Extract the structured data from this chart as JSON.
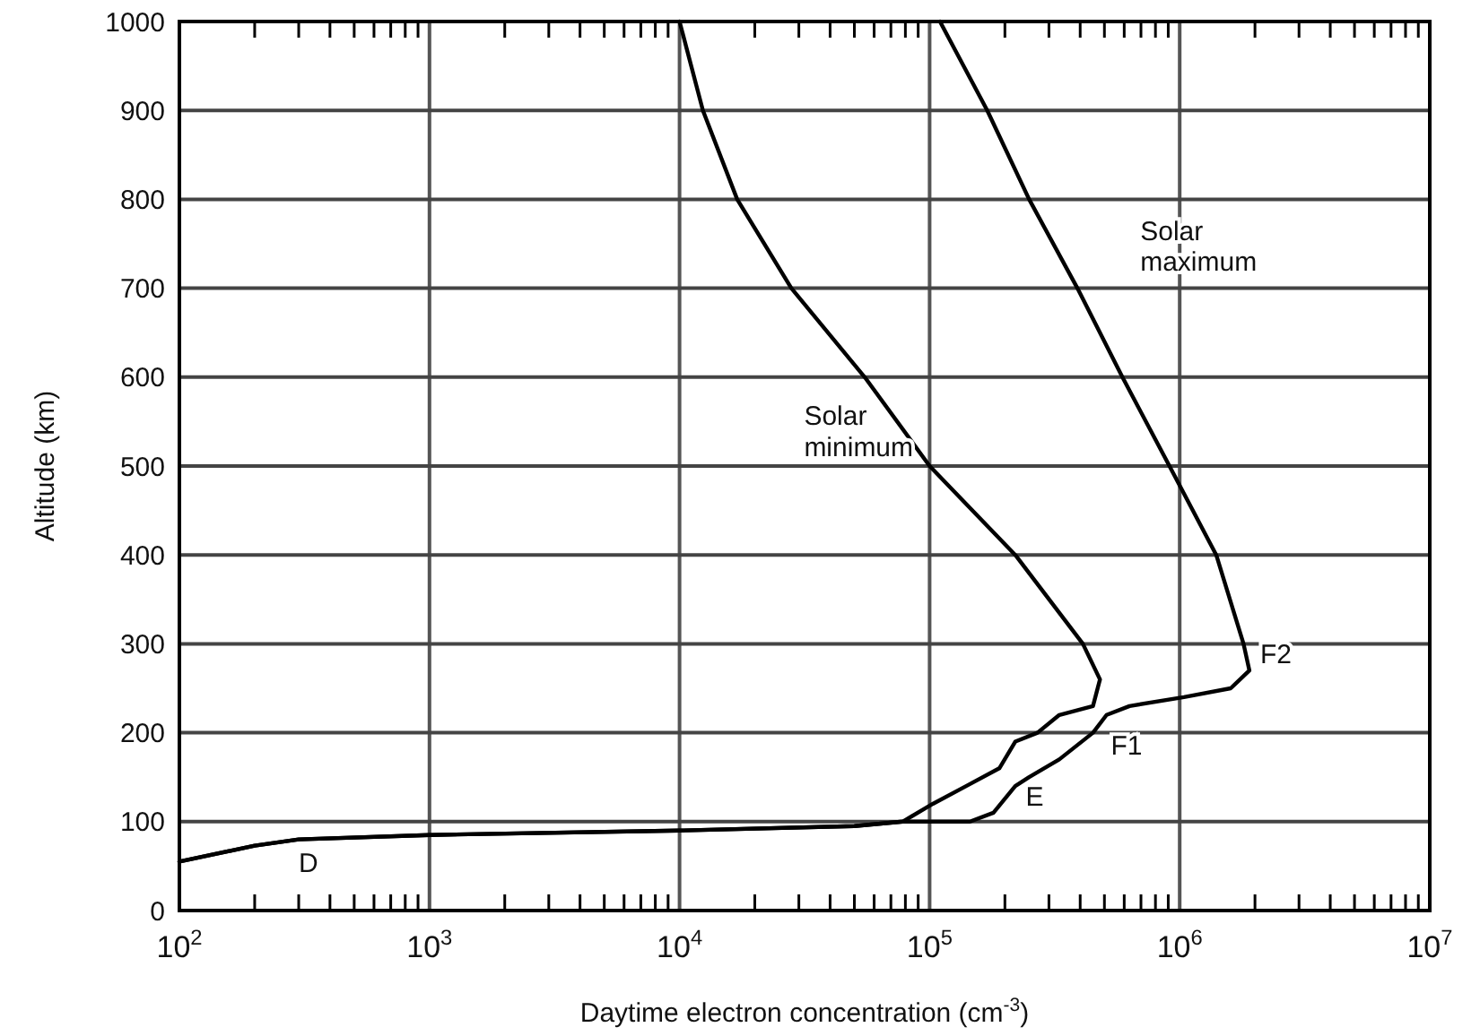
{
  "chart_data": {
    "type": "line",
    "xlabel": "Daytime electron concentration (cm$^{-3}$)",
    "ylabel": "Altitude (km)",
    "log": "x",
    "grid": true,
    "marker": "none",
    "line_style": "solid",
    "xlim": [
      100,
      10000000
    ],
    "ylim": [
      0,
      1000
    ],
    "xticks": [
      {
        "value": 100,
        "label": "10$^{2}$"
      },
      {
        "value": 200,
        "label": null
      },
      {
        "value": 300,
        "label": null
      },
      {
        "value": 400,
        "label": null
      },
      {
        "value": 500,
        "label": null
      },
      {
        "value": 600,
        "label": null
      },
      {
        "value": 700,
        "label": null
      },
      {
        "value": 800,
        "label": null
      },
      {
        "value": 900,
        "label": null
      },
      {
        "value": 1000,
        "label": "10$^{3}$"
      },
      {
        "value": 2000,
        "label": null
      },
      {
        "value": 3000,
        "label": null
      },
      {
        "value": 4000,
        "label": null
      },
      {
        "value": 5000,
        "label": null
      },
      {
        "value": 6000,
        "label": null
      },
      {
        "value": 7000,
        "label": null
      },
      {
        "value": 8000,
        "label": null
      },
      {
        "value": 9000,
        "label": null
      },
      {
        "value": 10000,
        "label": "10$^{4}$"
      },
      {
        "value": 20000,
        "label": null
      },
      {
        "value": 30000,
        "label": null
      },
      {
        "value": 40000,
        "label": null
      },
      {
        "value": 50000,
        "label": null
      },
      {
        "value": 60000,
        "label": null
      },
      {
        "value": 70000,
        "label": null
      },
      {
        "value": 80000,
        "label": null
      },
      {
        "value": 90000,
        "label": null
      },
      {
        "value": 100000,
        "label": "10$^{5}$"
      },
      {
        "value": 200000,
        "label": null
      },
      {
        "value": 300000,
        "label": null
      },
      {
        "value": 400000,
        "label": null
      },
      {
        "value": 500000,
        "label": null
      },
      {
        "value": 600000,
        "label": null
      },
      {
        "value": 700000,
        "label": null
      },
      {
        "value": 800000,
        "label": null
      },
      {
        "value": 900000,
        "label": null
      },
      {
        "value": 1000000,
        "label": "10$^{6}$"
      },
      {
        "value": 2000000,
        "label": null
      },
      {
        "value": 3000000,
        "label": null
      },
      {
        "value": 4000000,
        "label": null
      },
      {
        "value": 5000000,
        "label": null
      },
      {
        "value": 6000000,
        "label": null
      },
      {
        "value": 7000000,
        "label": null
      },
      {
        "value": 8000000,
        "label": null
      },
      {
        "value": 9000000,
        "label": null
      },
      {
        "value": 10000000,
        "label": "10$^{7}$"
      }
    ],
    "yticks": [
      0,
      100,
      200,
      300,
      400,
      500,
      600,
      700,
      800,
      900,
      1000
    ],
    "series": [
      {
        "color": "#000000",
        "x": [
          100,
          200,
          300,
          1000,
          10000,
          50000,
          78000,
          103000,
          140000,
          190000,
          220000,
          270000,
          330000,
          450000,
          480000,
          410000,
          220000,
          100000,
          55000,
          28000,
          17000,
          12400,
          10000
        ],
        "values": [
          55,
          73,
          80,
          85,
          90,
          95,
          100,
          120,
          140,
          160,
          190,
          200,
          220,
          230,
          260,
          300,
          400,
          500,
          600,
          700,
          800,
          900,
          1000
        ]
      },
      {
        "color": "#000000",
        "x": [
          100,
          200,
          300,
          1000,
          10000,
          50000,
          78000,
          100000,
          145000,
          180000,
          220000,
          250000,
          330000,
          450000,
          510000,
          630000,
          1040000,
          1600000,
          1900000,
          1800000,
          1400000,
          910000,
          590000,
          390000,
          250000,
          170000,
          110000
        ],
        "values": [
          55,
          73,
          80,
          85,
          90,
          95,
          100,
          100,
          100,
          110,
          140,
          150,
          170,
          200,
          220,
          230,
          240,
          250,
          270,
          300,
          400,
          500,
          600,
          700,
          800,
          900,
          1000
        ]
      }
    ],
    "annotations": [
      {
        "text": "Solar\nmaximum",
        "x": 390000,
        "y": 700
      },
      {
        "text": "Solar\nminimum",
        "x": 100000,
        "y": 500
      },
      {
        "text": "D",
        "x": 300,
        "y": 80
      },
      {
        "text": "E",
        "x": 180000,
        "y": 110
      },
      {
        "text": "F1",
        "x": 450000,
        "y": 200
      },
      {
        "text": "F2",
        "x": 1900000,
        "y": 270
      }
    ]
  }
}
